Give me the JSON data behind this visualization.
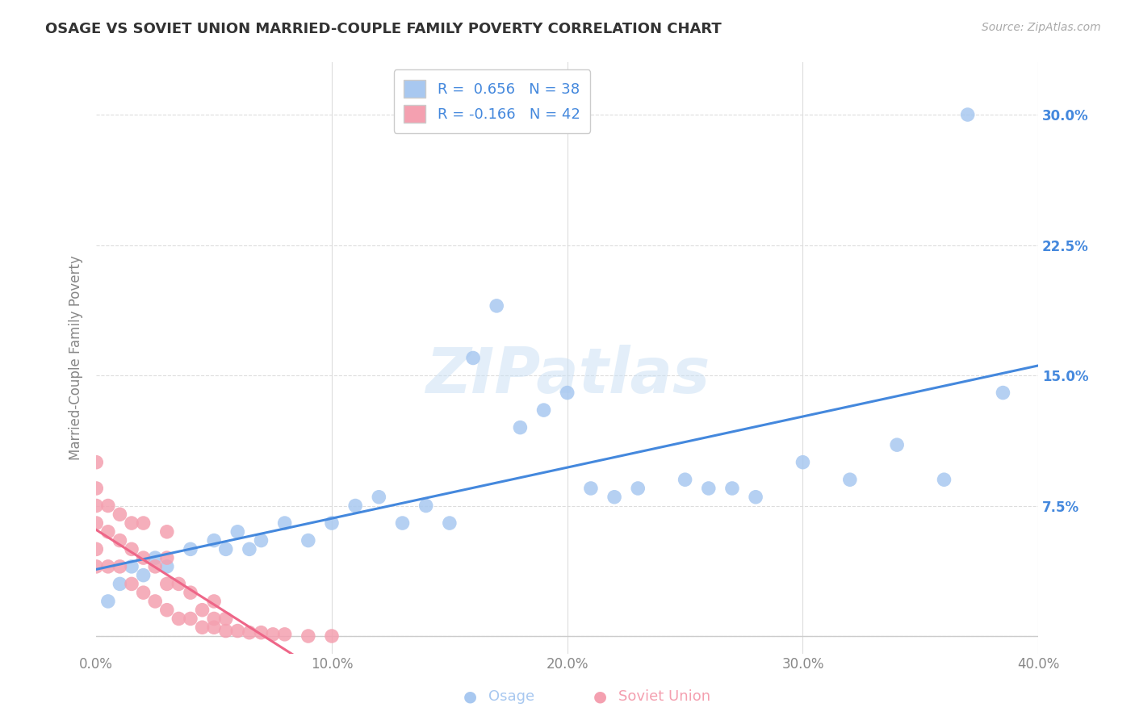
{
  "title": "OSAGE VS SOVIET UNION MARRIED-COUPLE FAMILY POVERTY CORRELATION CHART",
  "source": "Source: ZipAtlas.com",
  "ylabel": "Married-Couple Family Poverty",
  "watermark": "ZIPatlas",
  "xmin": 0.0,
  "xmax": 0.4,
  "ymin": -0.01,
  "ymax": 0.33,
  "xticks": [
    0.0,
    0.1,
    0.2,
    0.3,
    0.4
  ],
  "xticklabels": [
    "0.0%",
    "10.0%",
    "20.0%",
    "30.0%",
    "40.0%"
  ],
  "yticks": [
    0.0,
    0.075,
    0.15,
    0.225,
    0.3
  ],
  "yticklabels": [
    "",
    "7.5%",
    "15.0%",
    "22.5%",
    "30.0%"
  ],
  "osage_color": "#a8c8f0",
  "soviet_color": "#f4a0b0",
  "osage_R": 0.656,
  "osage_N": 38,
  "soviet_R": -0.166,
  "soviet_N": 42,
  "osage_line_color": "#4488dd",
  "soviet_line_color": "#ee6688",
  "legend_label_osage": "Osage",
  "legend_label_soviet": "Soviet Union",
  "background_color": "#ffffff",
  "grid_color": "#dddddd",
  "title_color": "#333333",
  "axis_label_color": "#888888",
  "tick_color_right": "#4488dd",
  "tick_color_bottom": "#888888",
  "osage_scatter_x": [
    0.005,
    0.01,
    0.015,
    0.02,
    0.025,
    0.03,
    0.04,
    0.05,
    0.055,
    0.06,
    0.065,
    0.07,
    0.08,
    0.09,
    0.1,
    0.11,
    0.12,
    0.13,
    0.14,
    0.15,
    0.16,
    0.17,
    0.18,
    0.19,
    0.2,
    0.21,
    0.22,
    0.23,
    0.25,
    0.26,
    0.27,
    0.28,
    0.3,
    0.32,
    0.34,
    0.36,
    0.37,
    0.385
  ],
  "osage_scatter_y": [
    0.02,
    0.03,
    0.04,
    0.035,
    0.045,
    0.04,
    0.05,
    0.055,
    0.05,
    0.06,
    0.05,
    0.055,
    0.065,
    0.055,
    0.065,
    0.075,
    0.08,
    0.065,
    0.075,
    0.065,
    0.16,
    0.19,
    0.12,
    0.13,
    0.14,
    0.085,
    0.08,
    0.085,
    0.09,
    0.085,
    0.085,
    0.08,
    0.1,
    0.09,
    0.11,
    0.09,
    0.3,
    0.14
  ],
  "soviet_scatter_x": [
    0.0,
    0.0,
    0.0,
    0.0,
    0.0,
    0.0,
    0.005,
    0.005,
    0.005,
    0.01,
    0.01,
    0.01,
    0.015,
    0.015,
    0.015,
    0.02,
    0.02,
    0.02,
    0.025,
    0.025,
    0.03,
    0.03,
    0.03,
    0.03,
    0.035,
    0.035,
    0.04,
    0.04,
    0.045,
    0.045,
    0.05,
    0.05,
    0.05,
    0.055,
    0.055,
    0.06,
    0.065,
    0.07,
    0.075,
    0.08,
    0.09,
    0.1
  ],
  "soviet_scatter_y": [
    0.04,
    0.05,
    0.065,
    0.075,
    0.085,
    0.1,
    0.04,
    0.06,
    0.075,
    0.04,
    0.055,
    0.07,
    0.03,
    0.05,
    0.065,
    0.025,
    0.045,
    0.065,
    0.02,
    0.04,
    0.015,
    0.03,
    0.045,
    0.06,
    0.01,
    0.03,
    0.01,
    0.025,
    0.005,
    0.015,
    0.005,
    0.01,
    0.02,
    0.003,
    0.01,
    0.003,
    0.002,
    0.002,
    0.001,
    0.001,
    0.0,
    0.0
  ]
}
